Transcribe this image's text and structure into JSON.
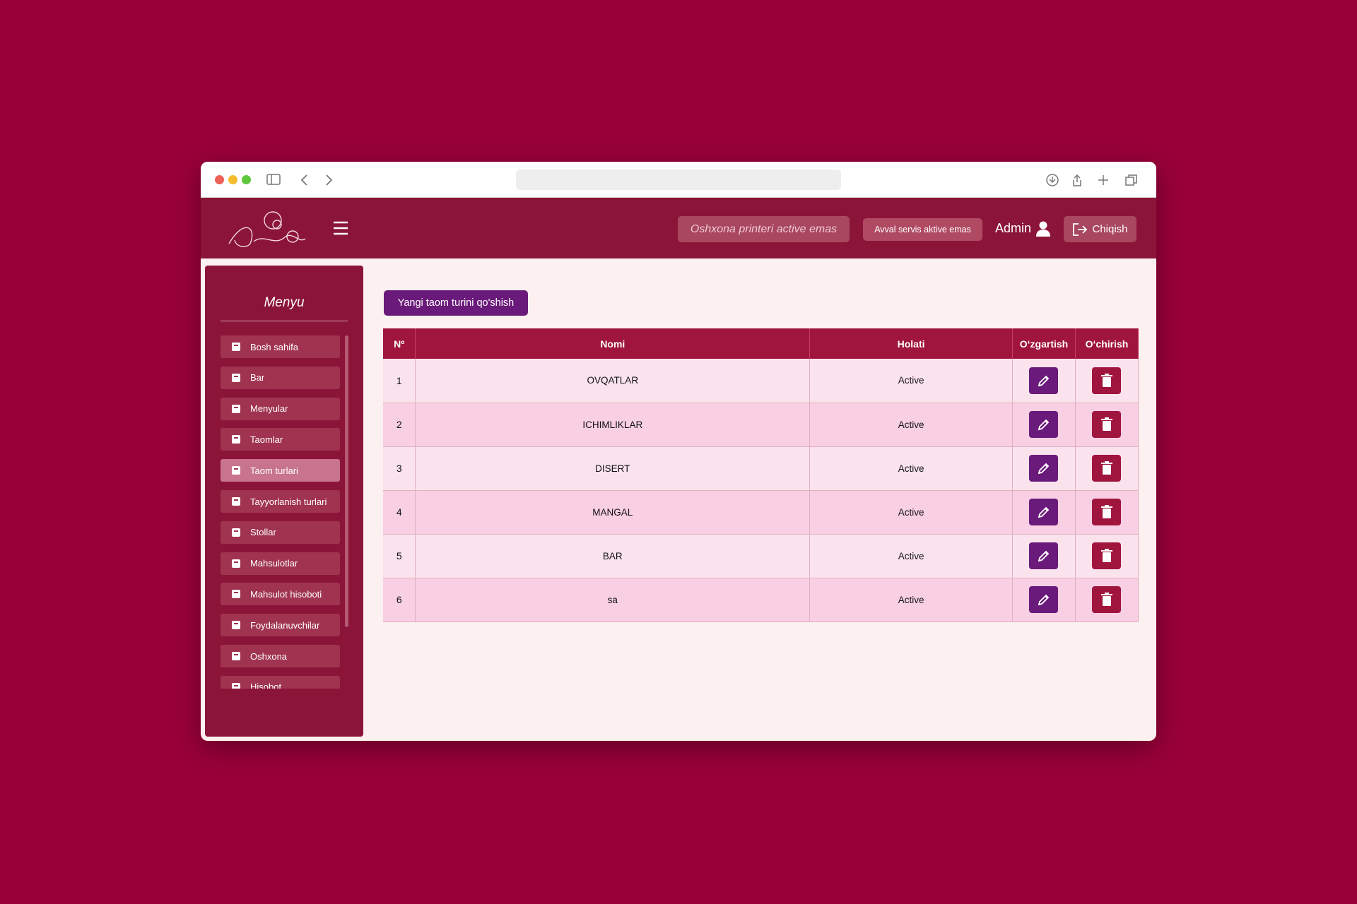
{
  "header": {
    "printer_status": "Oshxona printeri active emas",
    "service_status": "Avval servis aktive emas",
    "user": "Admin",
    "logout": "Chiqish"
  },
  "sidebar": {
    "title": "Menyu",
    "items": [
      "Bosh sahifa",
      "Bar",
      "Menyular",
      "Taomlar",
      "Taom turlari",
      "Tayyorlanish turlari",
      "Stollar",
      "Mahsulotlar",
      "Mahsulot hisoboti",
      "Foydalanuvchilar",
      "Oshxona",
      "Hisobot"
    ],
    "active_index": 4
  },
  "page": {
    "add_button": "Yangi taom turini qo'shish"
  },
  "table": {
    "columns": [
      "Nº",
      "Nomi",
      "Holati",
      "Oʻzgartish",
      "Oʻchirish"
    ],
    "rows": [
      [
        "1",
        "OVQATLAR",
        "Active"
      ],
      [
        "2",
        "ICHIMLIKLAR",
        "Active"
      ],
      [
        "3",
        "DISERT",
        "Active"
      ],
      [
        "4",
        "MANGAL",
        "Active"
      ],
      [
        "5",
        "BAR",
        "Active"
      ],
      [
        "6",
        "sa",
        "Active"
      ]
    ]
  }
}
